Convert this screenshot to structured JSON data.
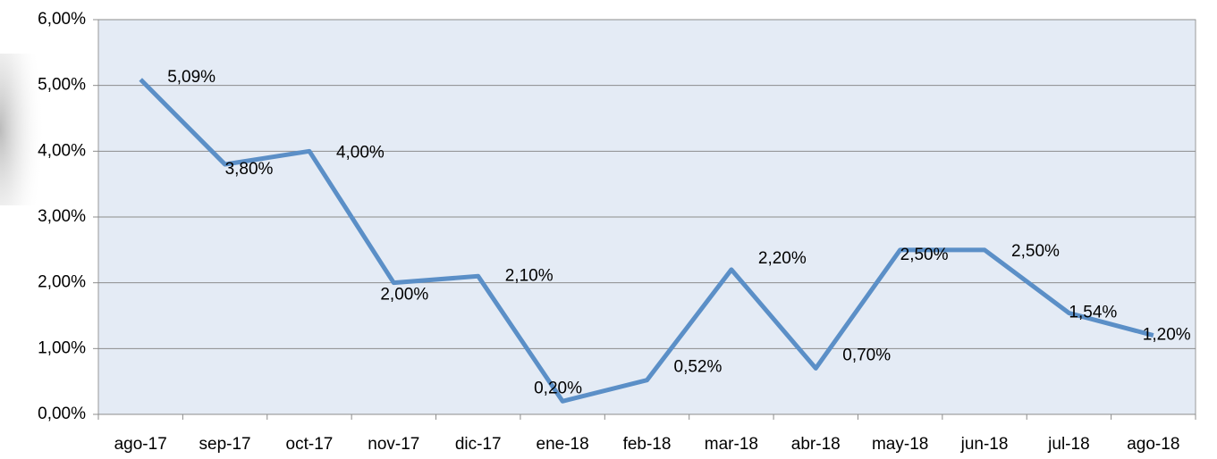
{
  "chart_data": {
    "type": "line",
    "categories": [
      "ago-17",
      "sep-17",
      "oct-17",
      "nov-17",
      "dic-17",
      "ene-18",
      "feb-18",
      "mar-18",
      "abr-18",
      "may-18",
      "jun-18",
      "jul-18",
      "ago-18"
    ],
    "series": [
      {
        "color": "#5b8fc7",
        "values": [
          5.09,
          3.8,
          4.0,
          2.0,
          2.1,
          0.2,
          0.52,
          2.2,
          0.7,
          2.5,
          2.5,
          1.54,
          1.2
        ],
        "value_labels": [
          "5,09%",
          "3,80%",
          "4,00%",
          "2,00%",
          "2,10%",
          "0,20%",
          "0,52%",
          "2,20%",
          "0,70%",
          "2,50%",
          "2,50%",
          "1,54%",
          "1,20%"
        ]
      }
    ],
    "ylim": [
      0,
      6
    ],
    "yticks": [
      {
        "value": 0,
        "label": "0,00%"
      },
      {
        "value": 1,
        "label": "1,00%"
      },
      {
        "value": 2,
        "label": "2,00%"
      },
      {
        "value": 3,
        "label": "3,00%"
      },
      {
        "value": 4,
        "label": "4,00%"
      },
      {
        "value": 5,
        "label": "5,00%"
      },
      {
        "value": 6,
        "label": "6,00%"
      }
    ],
    "grid": true
  }
}
